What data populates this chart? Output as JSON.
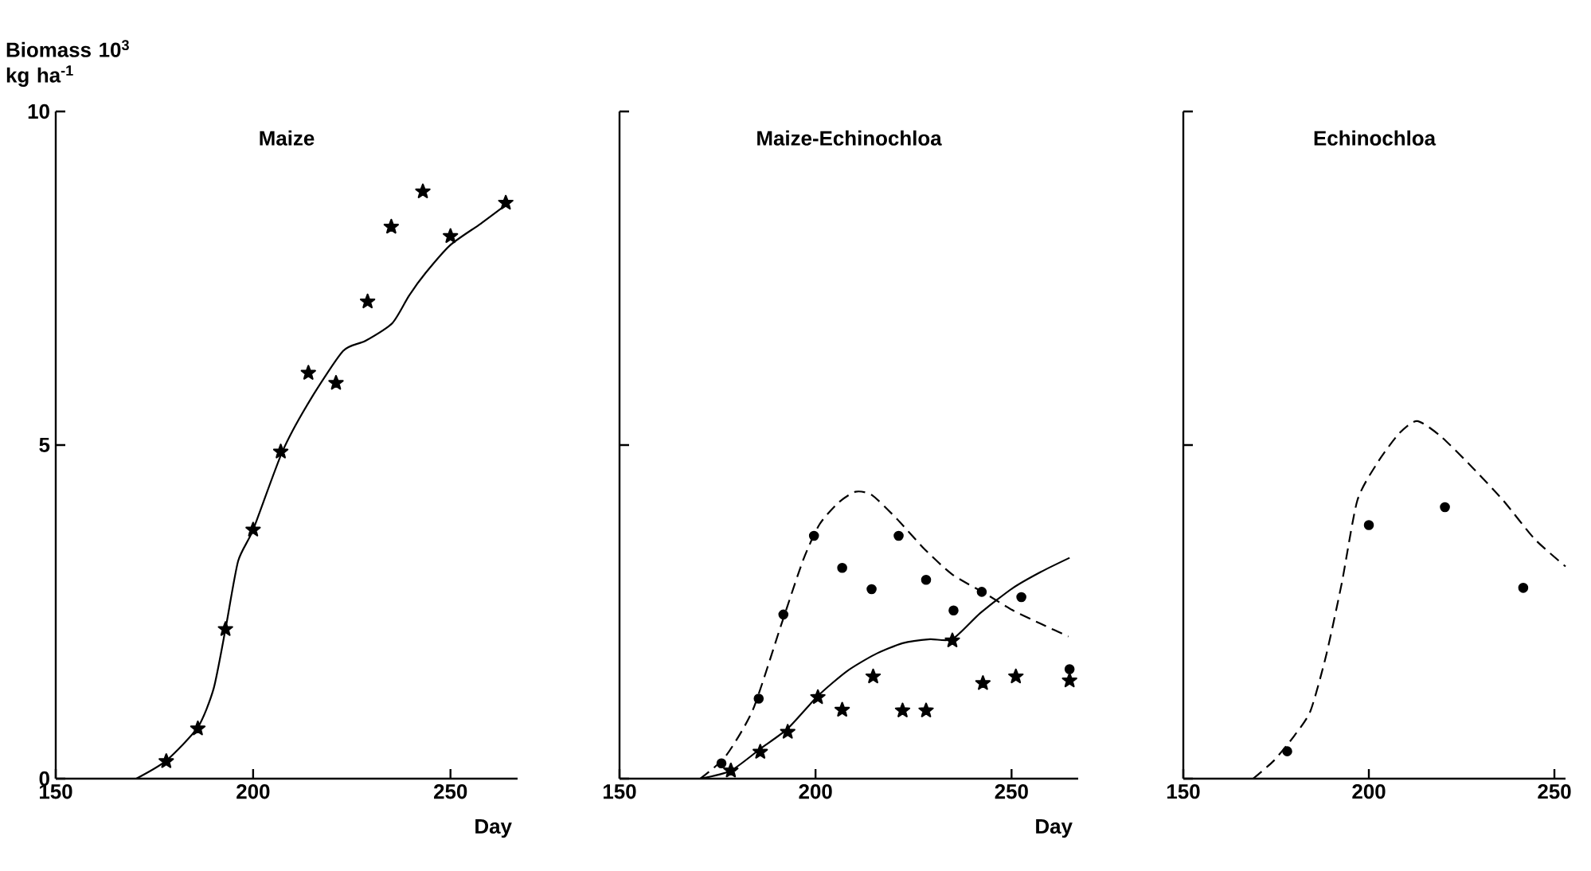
{
  "chart_data": [
    {
      "type": "line",
      "title": "Maize",
      "xlabel": "Day",
      "ylabel": "Biomass 10$^{3}$ kg ha$^{-1}$",
      "xlim": [
        150,
        267
      ],
      "ylim": [
        0,
        10
      ],
      "xticks": [
        150,
        200,
        250
      ],
      "yticks": [
        0,
        5,
        10
      ],
      "series": [
        {
          "type": "scatter",
          "marker": "star",
          "color": "#000000",
          "x": [
            178,
            186,
            193,
            200,
            207,
            214,
            221,
            229,
            235,
            243,
            250,
            264
          ],
          "values": [
            0.26,
            0.75,
            2.24,
            3.73,
            4.9,
            6.08,
            5.93,
            7.15,
            8.27,
            8.8,
            8.13,
            8.63
          ]
        },
        {
          "type": "line",
          "marker": "none",
          "line_style": "solid",
          "color": "#000000",
          "x": [
            170.4,
            178,
            186,
            190,
            193,
            196.2,
            200,
            207.4,
            214.4,
            222.8,
            228.4,
            235.3,
            239.5,
            243.7,
            250,
            257.7,
            265.4
          ],
          "values": [
            0,
            0.27,
            0.77,
            1.35,
            2.24,
            3.26,
            3.73,
            4.9,
            5.67,
            6.41,
            6.56,
            6.83,
            7.24,
            7.58,
            8.0,
            8.32,
            8.66
          ]
        }
      ]
    },
    {
      "type": "line",
      "title": "Maize-Echinochloa",
      "xlabel": "Day",
      "xlim": [
        150,
        267
      ],
      "ylim": [
        0,
        10
      ],
      "xticks": [
        150,
        200,
        250
      ],
      "yticks": [
        0,
        5,
        10
      ],
      "tick_labels": "x",
      "series": [
        {
          "type": "scatter",
          "marker": "circle",
          "color": "#000000",
          "x": [
            176,
            185.5,
            191.8,
            199.6,
            206.8,
            214.3,
            221.2,
            228.2,
            235.2,
            242.4,
            252.5,
            264.8
          ],
          "values": [
            0.23,
            1.2,
            2.46,
            3.64,
            3.16,
            2.84,
            3.64,
            2.98,
            2.52,
            2.8,
            2.72,
            1.64
          ]
        },
        {
          "type": "scatter",
          "marker": "star",
          "color": "#000000",
          "x": [
            178.4,
            185.9,
            192.9,
            200.6,
            206.8,
            214.7,
            222.2,
            228.2,
            234.9,
            242.7,
            251.1,
            264.8
          ],
          "values": [
            0.12,
            0.4,
            0.7,
            1.22,
            1.03,
            1.53,
            1.02,
            1.02,
            2.07,
            1.43,
            1.53,
            1.47
          ]
        },
        {
          "type": "line",
          "marker": "none",
          "line_style": "solid",
          "color": "#000000",
          "x": [
            170.6,
            178.4,
            186.2,
            192.9,
            200.6,
            208,
            215.1,
            222.2,
            229.2,
            234.9,
            242,
            250.4,
            257.5,
            264.8
          ],
          "values": [
            0,
            0.12,
            0.46,
            0.75,
            1.24,
            1.61,
            1.86,
            2.03,
            2.09,
            2.09,
            2.48,
            2.86,
            3.1,
            3.31
          ]
        },
        {
          "type": "line",
          "marker": "none",
          "line_style": "dashed",
          "color": "#000000",
          "x": [
            170.6,
            177,
            184,
            191.1,
            196.8,
            201,
            205.9,
            210.2,
            214.4,
            220.8,
            227.8,
            234.9,
            243.4,
            250.4,
            257.5,
            264.5
          ],
          "values": [
            0,
            0.33,
            1.03,
            2.28,
            3.27,
            3.81,
            4.14,
            4.3,
            4.25,
            3.89,
            3.44,
            3.06,
            2.77,
            2.52,
            2.32,
            2.13
          ]
        }
      ]
    },
    {
      "type": "line",
      "title": "Echinochloa",
      "xlim": [
        150,
        253
      ],
      "ylim": [
        0,
        10
      ],
      "xticks": [
        150,
        200,
        250
      ],
      "yticks": [
        0,
        5,
        10
      ],
      "tick_labels": "x",
      "series": [
        {
          "type": "scatter",
          "marker": "circle",
          "color": "#000000",
          "x": [
            178,
            200,
            220.5,
            241.6
          ],
          "values": [
            0.41,
            3.8,
            4.07,
            2.86
          ]
        },
        {
          "type": "line",
          "marker": "none",
          "line_style": "dashed",
          "color": "#000000",
          "x": [
            168.8,
            174.4,
            180,
            184.3,
            188.5,
            192.7,
            196.9,
            202.5,
            208.1,
            213,
            219.4,
            227.8,
            236.2,
            244.7,
            253
          ],
          "values": [
            0,
            0.27,
            0.65,
            1.02,
            1.85,
            2.93,
            4.17,
            4.75,
            5.17,
            5.36,
            5.13,
            4.67,
            4.17,
            3.59,
            3.18
          ]
        }
      ]
    }
  ]
}
